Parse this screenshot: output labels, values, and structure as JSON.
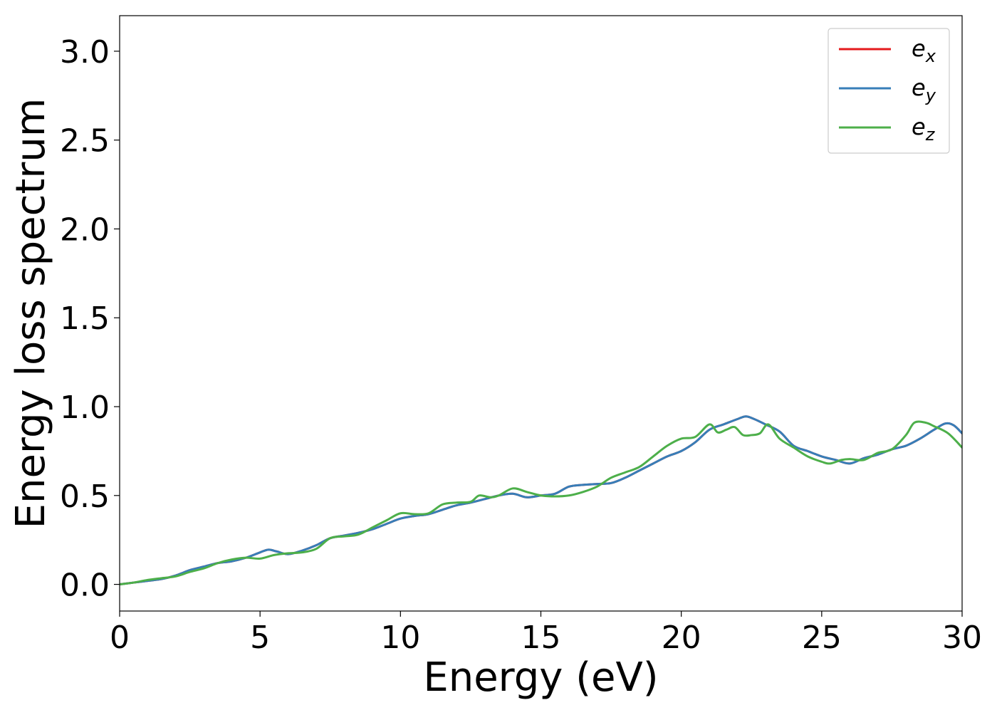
{
  "chart_data": {
    "type": "line",
    "title": "",
    "xlabel": "Energy (eV)",
    "ylabel": "Energy loss spectrum",
    "xlim": [
      0,
      30
    ],
    "ylim": [
      -0.15,
      3.2
    ],
    "xticks": [
      0,
      5,
      10,
      15,
      20,
      25,
      30
    ],
    "xtick_labels": [
      "0",
      "5",
      "10",
      "15",
      "20",
      "25",
      "30"
    ],
    "yticks": [
      0.0,
      0.5,
      1.0,
      1.5,
      2.0,
      2.5,
      3.0
    ],
    "ytick_labels": [
      "0.0",
      "0.5",
      "1.0",
      "1.5",
      "2.0",
      "2.5",
      "3.0"
    ],
    "grid": false,
    "legend_position": "top-right",
    "series": [
      {
        "name": "e_x",
        "legend_main": "e",
        "legend_sub": "x",
        "color": "#e41a1c",
        "x": [
          0,
          0.5,
          1,
          1.5,
          2,
          2.5,
          3,
          3.5,
          4,
          4.5,
          5,
          5.3,
          5.6,
          6,
          6.5,
          7,
          7.5,
          8,
          8.5,
          9,
          9.5,
          10,
          10.5,
          11,
          11.5,
          12,
          12.5,
          13,
          13.5,
          14,
          14.5,
          15,
          15.5,
          16,
          16.5,
          17,
          17.5,
          18,
          18.5,
          19,
          19.5,
          20,
          20.5,
          21,
          21.5,
          22,
          22.3,
          22.6,
          23,
          23.5,
          24,
          24.5,
          25,
          25.5,
          26,
          26.5,
          27,
          27.5,
          28,
          28.5,
          29,
          29.4,
          29.7,
          30
        ],
        "y": [
          0,
          0.01,
          0.02,
          0.03,
          0.05,
          0.08,
          0.1,
          0.12,
          0.13,
          0.15,
          0.18,
          0.195,
          0.185,
          0.17,
          0.19,
          0.22,
          0.26,
          0.275,
          0.29,
          0.31,
          0.34,
          0.37,
          0.385,
          0.395,
          0.42,
          0.445,
          0.46,
          0.48,
          0.5,
          0.51,
          0.49,
          0.5,
          0.51,
          0.55,
          0.56,
          0.565,
          0.57,
          0.6,
          0.64,
          0.68,
          0.72,
          0.75,
          0.8,
          0.87,
          0.9,
          0.93,
          0.945,
          0.93,
          0.9,
          0.86,
          0.78,
          0.75,
          0.72,
          0.7,
          0.68,
          0.71,
          0.73,
          0.76,
          0.78,
          0.82,
          0.87,
          0.905,
          0.895,
          0.85
        ]
      },
      {
        "name": "e_y",
        "legend_main": "e",
        "legend_sub": "y",
        "color": "#377eb8",
        "x": [
          0,
          0.5,
          1,
          1.5,
          2,
          2.5,
          3,
          3.5,
          4,
          4.5,
          5,
          5.3,
          5.6,
          6,
          6.5,
          7,
          7.5,
          8,
          8.5,
          9,
          9.5,
          10,
          10.5,
          11,
          11.5,
          12,
          12.5,
          13,
          13.5,
          14,
          14.5,
          15,
          15.5,
          16,
          16.5,
          17,
          17.5,
          18,
          18.5,
          19,
          19.5,
          20,
          20.5,
          21,
          21.5,
          22,
          22.3,
          22.6,
          23,
          23.5,
          24,
          24.5,
          25,
          25.5,
          26,
          26.5,
          27,
          27.5,
          28,
          28.5,
          29,
          29.4,
          29.7,
          30
        ],
        "y": [
          0,
          0.01,
          0.02,
          0.03,
          0.05,
          0.08,
          0.1,
          0.12,
          0.13,
          0.15,
          0.18,
          0.195,
          0.185,
          0.17,
          0.19,
          0.22,
          0.26,
          0.275,
          0.29,
          0.31,
          0.34,
          0.37,
          0.385,
          0.395,
          0.42,
          0.445,
          0.46,
          0.48,
          0.5,
          0.51,
          0.49,
          0.5,
          0.51,
          0.55,
          0.56,
          0.565,
          0.57,
          0.6,
          0.64,
          0.68,
          0.72,
          0.75,
          0.8,
          0.87,
          0.9,
          0.93,
          0.945,
          0.93,
          0.9,
          0.86,
          0.78,
          0.75,
          0.72,
          0.7,
          0.68,
          0.71,
          0.73,
          0.76,
          0.78,
          0.82,
          0.87,
          0.905,
          0.895,
          0.85
        ]
      },
      {
        "name": "e_z",
        "legend_main": "e",
        "legend_sub": "z",
        "color": "#4daf4a",
        "x": [
          0,
          0.5,
          1,
          1.5,
          2,
          2.5,
          3,
          3.5,
          4,
          4.5,
          5,
          5.5,
          6,
          6.5,
          7,
          7.5,
          8,
          8.5,
          9,
          9.5,
          10,
          10.5,
          11,
          11.5,
          12,
          12.5,
          12.8,
          13.2,
          13.5,
          14,
          14.5,
          15,
          15.5,
          16,
          16.5,
          17,
          17.5,
          18,
          18.5,
          19,
          19.5,
          20,
          20.5,
          21,
          21.3,
          21.6,
          21.9,
          22.2,
          22.5,
          22.8,
          23.1,
          23.5,
          24,
          24.5,
          25,
          25.3,
          25.7,
          26,
          26.5,
          27,
          27.5,
          28,
          28.3,
          28.7,
          29,
          29.5,
          30
        ],
        "y": [
          0,
          0.01,
          0.025,
          0.035,
          0.045,
          0.07,
          0.09,
          0.12,
          0.14,
          0.15,
          0.145,
          0.165,
          0.175,
          0.18,
          0.2,
          0.26,
          0.27,
          0.28,
          0.32,
          0.36,
          0.4,
          0.395,
          0.4,
          0.45,
          0.46,
          0.465,
          0.5,
          0.49,
          0.5,
          0.54,
          0.52,
          0.5,
          0.495,
          0.5,
          0.52,
          0.55,
          0.6,
          0.63,
          0.66,
          0.72,
          0.78,
          0.82,
          0.83,
          0.9,
          0.855,
          0.87,
          0.885,
          0.84,
          0.84,
          0.85,
          0.9,
          0.82,
          0.77,
          0.72,
          0.69,
          0.68,
          0.7,
          0.705,
          0.7,
          0.74,
          0.76,
          0.84,
          0.91,
          0.91,
          0.89,
          0.85,
          0.77
        ]
      }
    ]
  }
}
